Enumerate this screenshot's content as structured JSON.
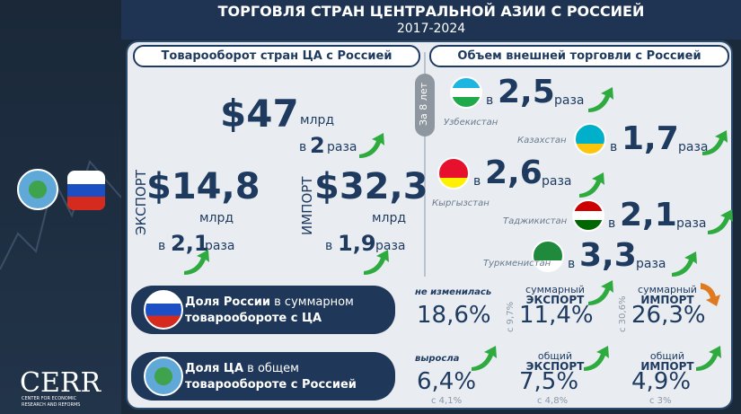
{
  "header": {
    "title": "ТОРГОВЛЯ СТРАН ЦЕНТРАЛЬНОЙ АЗИИ С РОССИЕЙ",
    "period": "2017-2024"
  },
  "trade": {
    "heading": "Товарооборот стран ЦА с Россией",
    "total": {
      "value": "$47",
      "unit": "млрд",
      "prefix": "в",
      "growth": "2",
      "suffix": "раза"
    },
    "export": {
      "label": "ЭКСПОРТ",
      "value": "$14,8",
      "unit": "млрд",
      "prefix": "в",
      "growth": "2,1",
      "suffix": "раза"
    },
    "import": {
      "label": "ИМПОРТ",
      "value": "$32,3",
      "unit": "млрд",
      "prefix": "в",
      "growth": "1,9",
      "suffix": "раза"
    }
  },
  "countries": {
    "heading": "Объем внешней торговли с Россией",
    "period_label": "За 8 лет",
    "items": [
      {
        "name": "Узбекистан",
        "prefix": "в",
        "value": "2,5",
        "suffix": "раза"
      },
      {
        "name": "Казахстан",
        "prefix": "в",
        "value": "1,7",
        "suffix": "раза"
      },
      {
        "name": "Кыргызстан",
        "prefix": "в",
        "value": "2,6",
        "suffix": "раза"
      },
      {
        "name": "Таджикистан",
        "prefix": "в",
        "value": "2,1",
        "suffix": "раза"
      },
      {
        "name": "Туркменистан",
        "prefix": "в",
        "value": "3,3",
        "suffix": "раза"
      }
    ]
  },
  "shares": [
    {
      "title_bold": "Доля России",
      "title_rest": " в суммарном",
      "title_line2": "товарообороте с ЦА",
      "total": {
        "note": "не изменилась",
        "value": "18,6%"
      },
      "export": {
        "label_top": "суммарный",
        "label": "ЭКСПОРТ",
        "value": "11,4%",
        "from": "с 9,7%"
      },
      "import": {
        "label_top": "суммарный",
        "label": "ИМПОРТ",
        "value": "26,3%",
        "from": "с 30,6%"
      }
    },
    {
      "title_bold": "Доля ЦА",
      "title_rest": " в общем",
      "title_line2": "товарообороте с Россией",
      "total": {
        "note": "выросла",
        "value": "6,4%",
        "from": "с 4,1%"
      },
      "export": {
        "label_top": "общий",
        "label": "ЭКСПОРТ",
        "value": "7,5%",
        "from": "с 4,8%"
      },
      "import": {
        "label_top": "общий",
        "label": "ИМПОРТ",
        "value": "4,9%",
        "from": "с 3%"
      }
    }
  ],
  "logo": {
    "name": "CERR",
    "line1": "CENTER FOR ECONOMIC",
    "line2": "RESEARCH AND REFORMS"
  }
}
